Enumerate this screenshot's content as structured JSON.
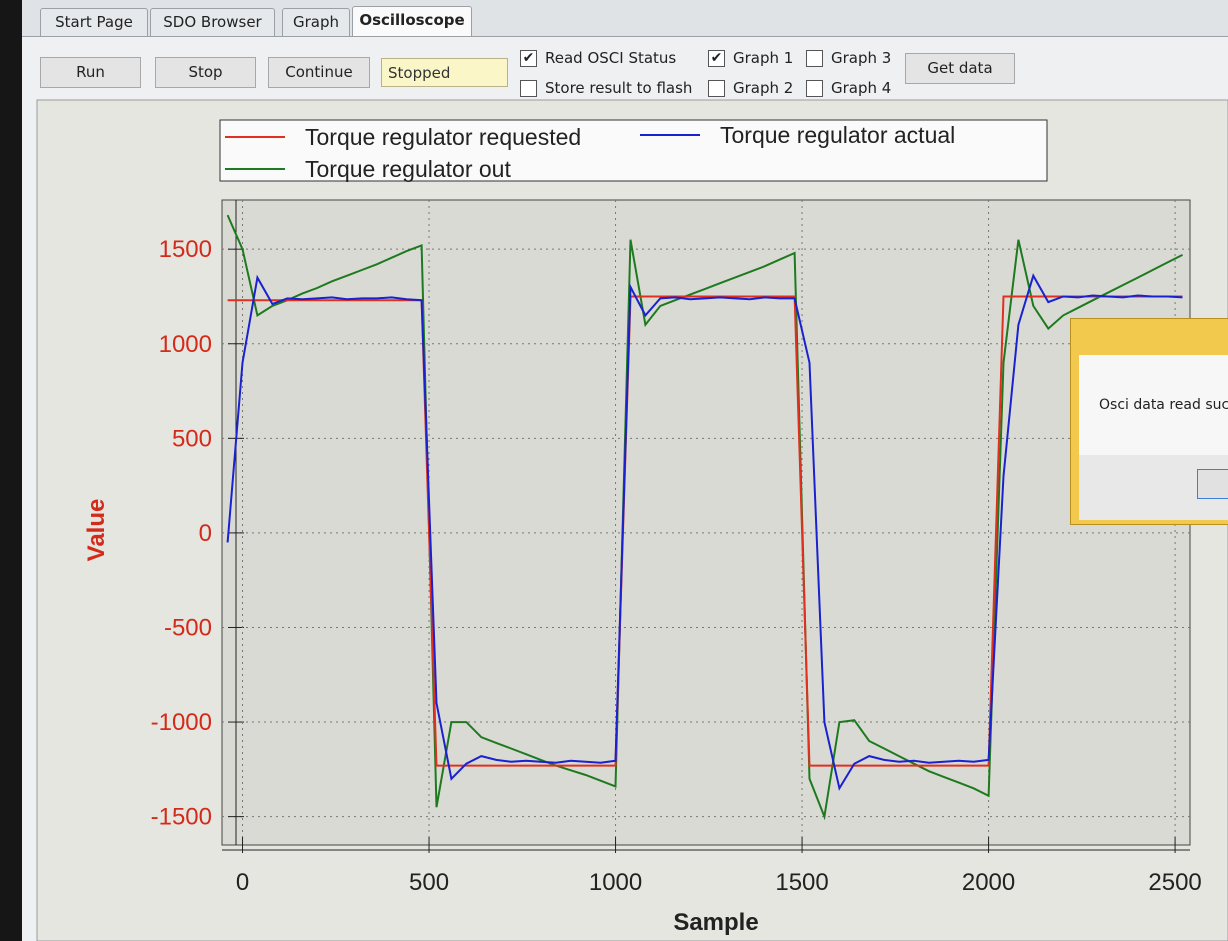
{
  "tabs": [
    "Start Page",
    "SDO Browser",
    "Graph",
    "Oscilloscope"
  ],
  "active_tab": 3,
  "buttons": {
    "run": "Run",
    "stop": "Stop",
    "continue": "Continue",
    "get_data": "Get data"
  },
  "status": "Stopped",
  "checkboxes": [
    {
      "label": "Read OSCI Status",
      "checked": true
    },
    {
      "label": "Store result to flash",
      "checked": false
    },
    {
      "label": "Graph 1",
      "checked": true
    },
    {
      "label": "Graph 2",
      "checked": false
    },
    {
      "label": "Graph 3",
      "checked": false
    },
    {
      "label": "Graph 4",
      "checked": false
    }
  ],
  "dialog": {
    "message": "Osci data read suc"
  },
  "chart_data": {
    "type": "line",
    "xlabel": "Sample",
    "ylabel": "Value",
    "xlim": [
      -55,
      2540
    ],
    "ylim": [
      -1650,
      1760
    ],
    "xticks": [
      0,
      500,
      1000,
      1500,
      2000,
      2500
    ],
    "yticks": [
      -1500,
      -1000,
      -500,
      0,
      500,
      1000,
      1500
    ],
    "grid": true,
    "legend": "top",
    "x": [
      -40,
      0,
      40,
      80,
      120,
      160,
      200,
      240,
      280,
      320,
      360,
      400,
      440,
      480,
      520,
      560,
      600,
      640,
      680,
      720,
      760,
      800,
      840,
      880,
      920,
      960,
      1000,
      1040,
      1080,
      1120,
      1160,
      1200,
      1240,
      1280,
      1320,
      1360,
      1400,
      1440,
      1480,
      1520,
      1560,
      1600,
      1640,
      1680,
      1720,
      1760,
      1800,
      1840,
      1880,
      1920,
      1960,
      2000,
      2040,
      2080,
      2120,
      2160,
      2200,
      2240,
      2280,
      2320,
      2360,
      2400,
      2440,
      2480,
      2520
    ],
    "series": [
      {
        "name": "Torque regulator requested",
        "color": "#e03020",
        "values": [
          1230,
          1230,
          1230,
          1230,
          1230,
          1230,
          1230,
          1230,
          1230,
          1230,
          1230,
          1230,
          1230,
          1230,
          -1230,
          -1230,
          -1230,
          -1230,
          -1230,
          -1230,
          -1230,
          -1230,
          -1230,
          -1230,
          -1230,
          -1230,
          -1230,
          1250,
          1250,
          1250,
          1250,
          1250,
          1250,
          1250,
          1250,
          1250,
          1250,
          1250,
          1250,
          -1230,
          -1230,
          -1230,
          -1230,
          -1230,
          -1230,
          -1230,
          -1230,
          -1230,
          -1230,
          -1230,
          -1230,
          -1230,
          1250,
          1250,
          1250,
          1250,
          1250,
          1250,
          1250,
          1250,
          1250,
          1250,
          1250,
          1250,
          1250
        ]
      },
      {
        "name": "Torque regulator actual",
        "color": "#1a22d0",
        "values": [
          -50,
          900,
          1350,
          1210,
          1240,
          1235,
          1240,
          1245,
          1235,
          1240,
          1240,
          1245,
          1235,
          1230,
          -900,
          -1300,
          -1220,
          -1180,
          -1200,
          -1210,
          -1205,
          -1210,
          -1215,
          -1205,
          -1210,
          -1215,
          -1205,
          1300,
          1150,
          1240,
          1245,
          1235,
          1240,
          1245,
          1240,
          1235,
          1245,
          1240,
          1240,
          900,
          -1000,
          -1350,
          -1220,
          -1180,
          -1200,
          -1210,
          -1205,
          -1215,
          -1210,
          -1205,
          -1210,
          -1200,
          300,
          1100,
          1360,
          1220,
          1250,
          1245,
          1255,
          1250,
          1245,
          1255,
          1250,
          1250,
          1245
        ]
      },
      {
        "name": "Torque regulator out",
        "color": "#1e7a1e",
        "values": [
          1680,
          1500,
          1150,
          1200,
          1230,
          1265,
          1295,
          1330,
          1360,
          1390,
          1420,
          1455,
          1490,
          1520,
          -1450,
          -1000,
          -1000,
          -1080,
          -1110,
          -1140,
          -1170,
          -1200,
          -1230,
          -1255,
          -1280,
          -1310,
          -1340,
          1550,
          1100,
          1200,
          1230,
          1260,
          1290,
          1320,
          1350,
          1380,
          1410,
          1445,
          1480,
          -1300,
          -1500,
          -1000,
          -990,
          -1100,
          -1140,
          -1180,
          -1220,
          -1260,
          -1290,
          -1320,
          -1350,
          -1390,
          900,
          1550,
          1200,
          1080,
          1150,
          1190,
          1230,
          1270,
          1310,
          1350,
          1390,
          1430,
          1470
        ]
      }
    ]
  }
}
